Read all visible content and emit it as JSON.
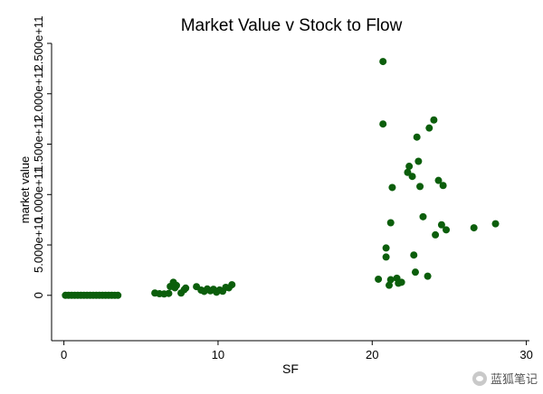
{
  "chart_data": {
    "type": "scatter",
    "title": "Market Value v Stock to Flow",
    "xlabel": "SF",
    "ylabel": "market value",
    "xlim": [
      -0.8,
      30.2
    ],
    "ylim": [
      -45000000000.0,
      250000000000.0
    ],
    "xticks": [
      0,
      10,
      20,
      30
    ],
    "xtick_labels": [
      "0",
      "10",
      "20",
      "30"
    ],
    "yticks": [
      0,
      50000000000.0,
      100000000000.0,
      150000000000.0,
      200000000000.0,
      250000000000.0
    ],
    "ytick_labels": [
      "0",
      "5.000e+10",
      "1.000e+11",
      "1.500e+11",
      "2.000e+11",
      "2.500e+11"
    ],
    "marker_color": "#0b5e0b",
    "grid": false,
    "legend": false,
    "points": [
      [
        0.1,
        20000000.0
      ],
      [
        0.3,
        20000000.0
      ],
      [
        0.5,
        20000000.0
      ],
      [
        0.7,
        20000000.0
      ],
      [
        0.9,
        20000000.0
      ],
      [
        1.1,
        20000000.0
      ],
      [
        1.3,
        20000000.0
      ],
      [
        1.5,
        20000000.0
      ],
      [
        1.7,
        20000000.0
      ],
      [
        1.9,
        20000000.0
      ],
      [
        2.1,
        20000000.0
      ],
      [
        2.3,
        20000000.0
      ],
      [
        2.5,
        20000000.0
      ],
      [
        2.7,
        20000000.0
      ],
      [
        2.9,
        20000000.0
      ],
      [
        3.1,
        20000000.0
      ],
      [
        3.3,
        20000000.0
      ],
      [
        3.5,
        20000000.0
      ],
      [
        5.9,
        2300000000.0
      ],
      [
        6.2,
        1600000000.0
      ],
      [
        6.5,
        1400000000.0
      ],
      [
        6.8,
        1900000000.0
      ],
      [
        6.9,
        8800000000.0
      ],
      [
        7.1,
        13000000000.0
      ],
      [
        7.2,
        7500000000.0
      ],
      [
        7.3,
        9800000000.0
      ],
      [
        7.6,
        2300000000.0
      ],
      [
        7.8,
        5500000000.0
      ],
      [
        7.9,
        7200000000.0
      ],
      [
        8.6,
        8600000000.0
      ],
      [
        8.9,
        5200000000.0
      ],
      [
        9.1,
        3900000000.0
      ],
      [
        9.3,
        6300000000.0
      ],
      [
        9.5,
        4500000000.0
      ],
      [
        9.7,
        6000000000.0
      ],
      [
        9.9,
        3100000000.0
      ],
      [
        10.1,
        5300000000.0
      ],
      [
        10.3,
        4100000000.0
      ],
      [
        10.5,
        7900000000.0
      ],
      [
        10.7,
        7500000000.0
      ],
      [
        10.9,
        10500000000.0
      ],
      [
        20.4,
        16000000000.0
      ],
      [
        20.7,
        232000000000.0
      ],
      [
        20.7,
        170000000000.0
      ],
      [
        20.9,
        47000000000.0
      ],
      [
        20.9,
        38000000000.0
      ],
      [
        21.1,
        10000000000.0
      ],
      [
        21.2,
        15500000000.0
      ],
      [
        21.2,
        72000000000.0
      ],
      [
        21.3,
        107000000000.0
      ],
      [
        21.6,
        17000000000.0
      ],
      [
        21.7,
        12000000000.0
      ],
      [
        21.9,
        13000000000.0
      ],
      [
        22.3,
        122000000000.0
      ],
      [
        22.4,
        128000000000.0
      ],
      [
        22.6,
        118000000000.0
      ],
      [
        22.7,
        40000000000.0
      ],
      [
        22.8,
        23000000000.0
      ],
      [
        22.9,
        157000000000.0
      ],
      [
        23.0,
        133000000000.0
      ],
      [
        23.1,
        108000000000.0
      ],
      [
        23.3,
        78000000000.0
      ],
      [
        23.6,
        19000000000.0
      ],
      [
        23.7,
        166000000000.0
      ],
      [
        24.0,
        174000000000.0
      ],
      [
        24.1,
        60000000000.0
      ],
      [
        24.3,
        114000000000.0
      ],
      [
        24.5,
        70000000000.0
      ],
      [
        24.6,
        109000000000.0
      ],
      [
        24.8,
        65000000000.0
      ],
      [
        26.6,
        67000000000.0
      ],
      [
        28.0,
        71000000000.0
      ]
    ]
  },
  "watermark": {
    "text": "蓝狐笔记",
    "icon": "chat-bubble-icon"
  }
}
